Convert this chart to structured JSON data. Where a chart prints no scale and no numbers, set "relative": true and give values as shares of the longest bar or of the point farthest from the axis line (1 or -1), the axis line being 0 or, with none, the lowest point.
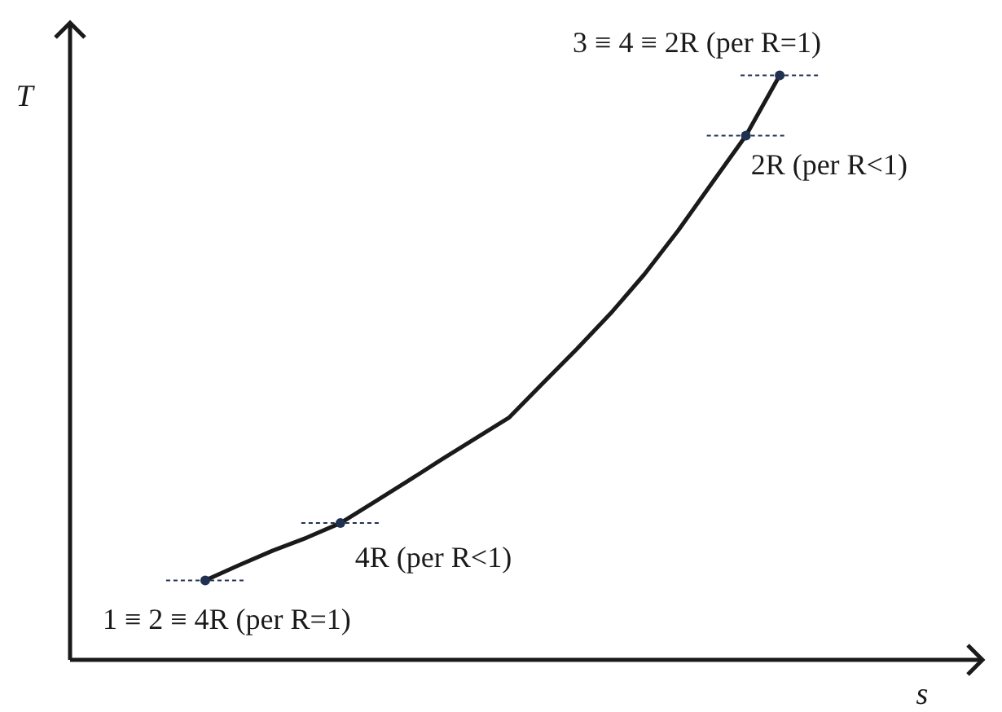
{
  "chart_data": {
    "type": "line",
    "relative": true,
    "legend": false,
    "marker": "none",
    "xlabel": "s",
    "ylabel": "T",
    "categories": [
      null,
      null,
      null,
      null,
      null,
      null,
      null,
      null,
      null,
      null,
      null,
      null,
      null,
      null,
      null,
      null,
      null,
      null,
      null,
      null,
      null,
      null,
      null,
      null,
      null,
      null,
      null,
      null
    ],
    "series": [
      {
        "color": "#1a1a1a",
        "values": [
          null,
          null,
          null,
          null,
          0.136,
          0.162,
          0.187,
          0.209,
          0.234,
          0.27,
          0.306,
          0.343,
          0.379,
          0.415,
          0.474,
          0.532,
          0.593,
          0.66,
          0.735,
          0.816,
          0.897,
          1,
          null,
          null,
          null,
          null,
          null,
          null
        ]
      }
    ],
    "ref_lines": [
      {
        "axis": "y",
        "value": 0.136,
        "line_style": "dashed",
        "color": "#1f3050"
      },
      {
        "axis": "y",
        "value": 0.234,
        "label": "4R (per R<1)",
        "line_style": "dashed",
        "color": "#1f3050"
      },
      {
        "axis": "y",
        "value": 0.897,
        "label": "2R (per R<1)",
        "line_style": "dashed",
        "color": "#1f3050"
      },
      {
        "axis": "y",
        "value": 1,
        "label": "3 ≡ 4 ≡ 2R (per R=1)",
        "line_style": "dashed",
        "color": "#1f3050"
      }
    ],
    "annotations": [
      "1 ≡ 2 ≡ 4R (per R=1)"
    ]
  }
}
